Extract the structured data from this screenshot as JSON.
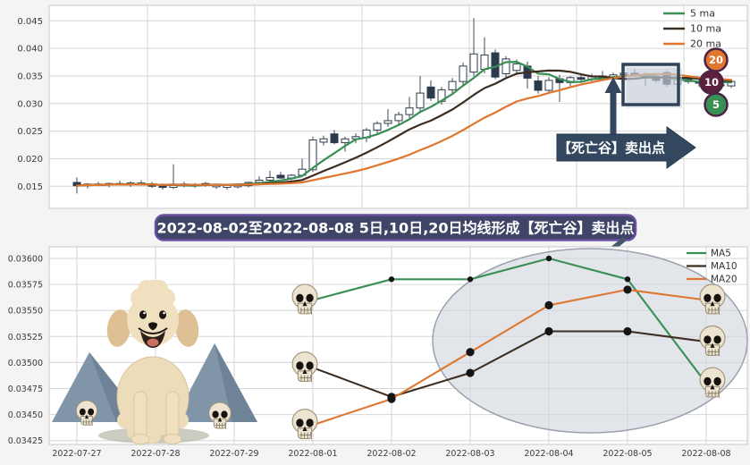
{
  "banner": {
    "text": "2022-08-02至2022-08-08 5日,10日,20日均线形成【死亡谷】卖出点"
  },
  "colors": {
    "ma5": "#3a8f55",
    "ma10": "#3c2d21",
    "ma20": "#e0762f",
    "candle_up_fill": "#ffffff",
    "candle_down_fill": "#2b3a4d",
    "candle_stroke": "#2e3b4e",
    "annotation_navy": "#33475f",
    "banner_fill": "#3f4566",
    "banner_border": "#6b4fa2",
    "badge_border": "#4b2344",
    "badge_10_fill": "#5d2139",
    "ellipse_fill": "#cfd4dc",
    "ellipse_stroke": "#9ba1ad",
    "grid": "#d6d6d6",
    "spine": "#c9c9c9",
    "marker_dot": "#141414"
  },
  "chart_data": [
    {
      "id": "candlestick-overview",
      "type": "candlestick",
      "grid": true,
      "legend_position": "upper right",
      "legend": [
        {
          "name": "5 ma",
          "color": "#3a8f55"
        },
        {
          "name": "10 ma",
          "color": "#3c2d21"
        },
        {
          "name": "20 ma",
          "color": "#e0762f"
        }
      ],
      "ma_windows": [
        5,
        10,
        20
      ],
      "y_ticks": [
        0.015,
        0.02,
        0.025,
        0.03,
        0.035,
        0.04,
        0.045
      ],
      "y_tick_labels": [
        "0.015",
        "0.020",
        "0.025",
        "0.030",
        "0.035",
        "0.040",
        "0.045"
      ],
      "ylim": [
        0.011,
        0.0475
      ],
      "annotation": {
        "text": "【死亡谷】卖出点"
      },
      "badges": [
        {
          "text": "20",
          "fill": "#e0762f"
        },
        {
          "text": "10",
          "fill": "#5d2139"
        },
        {
          "text": "5",
          "fill": "#3a8f55"
        }
      ],
      "ohlc": [
        [
          0.0157,
          0.0166,
          0.0137,
          0.0151
        ],
        [
          0.0151,
          0.0156,
          0.0146,
          0.0154
        ],
        [
          0.0154,
          0.0158,
          0.015,
          0.0152
        ],
        [
          0.0152,
          0.0157,
          0.0148,
          0.0155
        ],
        [
          0.0155,
          0.016,
          0.0151,
          0.0153
        ],
        [
          0.0153,
          0.0159,
          0.0149,
          0.0156
        ],
        [
          0.0156,
          0.0161,
          0.0152,
          0.0154
        ],
        [
          0.0154,
          0.0158,
          0.0147,
          0.015
        ],
        [
          0.015,
          0.0155,
          0.0144,
          0.0148
        ],
        [
          0.0148,
          0.019,
          0.0145,
          0.0154
        ],
        [
          0.0154,
          0.0158,
          0.0148,
          0.0151
        ],
        [
          0.0151,
          0.0156,
          0.0147,
          0.0153
        ],
        [
          0.0153,
          0.0158,
          0.0149,
          0.0155
        ],
        [
          0.0149,
          0.0154,
          0.0145,
          0.0153
        ],
        [
          0.0148,
          0.0153,
          0.0144,
          0.0152
        ],
        [
          0.0149,
          0.0155,
          0.0146,
          0.0154
        ],
        [
          0.0151,
          0.0158,
          0.0148,
          0.0157
        ],
        [
          0.0157,
          0.0168,
          0.0153,
          0.0161
        ],
        [
          0.0161,
          0.0178,
          0.0158,
          0.0166
        ],
        [
          0.017,
          0.0176,
          0.0163,
          0.0165
        ],
        [
          0.0165,
          0.0172,
          0.0161,
          0.017
        ],
        [
          0.017,
          0.02,
          0.0166,
          0.0181
        ],
        [
          0.018,
          0.024,
          0.0176,
          0.0234
        ],
        [
          0.023,
          0.0242,
          0.0224,
          0.0236
        ],
        [
          0.0245,
          0.0252,
          0.0226,
          0.0229
        ],
        [
          0.0229,
          0.024,
          0.0213,
          0.0236
        ],
        [
          0.0236,
          0.0246,
          0.0228,
          0.024
        ],
        [
          0.0238,
          0.0256,
          0.023,
          0.0252
        ],
        [
          0.0252,
          0.0268,
          0.0246,
          0.0264
        ],
        [
          0.0264,
          0.029,
          0.0258,
          0.0269
        ],
        [
          0.0269,
          0.0285,
          0.0262,
          0.028
        ],
        [
          0.028,
          0.0312,
          0.0274,
          0.0292
        ],
        [
          0.0292,
          0.035,
          0.0286,
          0.0319
        ],
        [
          0.033,
          0.0342,
          0.0305,
          0.031
        ],
        [
          0.0304,
          0.033,
          0.0298,
          0.0325
        ],
        [
          0.0325,
          0.0346,
          0.0318,
          0.034
        ],
        [
          0.034,
          0.0374,
          0.0334,
          0.0368
        ],
        [
          0.0357,
          0.0455,
          0.035,
          0.039
        ],
        [
          0.0362,
          0.042,
          0.0355,
          0.0388
        ],
        [
          0.0392,
          0.0398,
          0.0344,
          0.0348
        ],
        [
          0.0354,
          0.0386,
          0.0348,
          0.0381
        ],
        [
          0.036,
          0.038,
          0.0352,
          0.0372
        ],
        [
          0.0368,
          0.0376,
          0.0327,
          0.0346
        ],
        [
          0.0341,
          0.035,
          0.0318,
          0.0324
        ],
        [
          0.0324,
          0.0348,
          0.032,
          0.0342
        ],
        [
          0.0345,
          0.0352,
          0.0303,
          0.0338
        ],
        [
          0.0338,
          0.035,
          0.0332,
          0.0347
        ],
        [
          0.0347,
          0.0353,
          0.034,
          0.0344
        ],
        [
          0.0344,
          0.0354,
          0.0338,
          0.035
        ],
        [
          0.035,
          0.0359,
          0.0344,
          0.0347
        ],
        [
          0.0347,
          0.0356,
          0.0342,
          0.0352
        ],
        [
          0.0352,
          0.036,
          0.0346,
          0.0355
        ],
        [
          0.0355,
          0.0362,
          0.0348,
          0.0351
        ],
        [
          0.0351,
          0.0356,
          0.0332,
          0.0348
        ],
        [
          0.0348,
          0.0355,
          0.0338,
          0.0342
        ],
        [
          0.0356,
          0.036,
          0.033,
          0.0335
        ],
        [
          0.0335,
          0.0348,
          0.033,
          0.0344
        ],
        [
          0.0344,
          0.035,
          0.0336,
          0.034
        ],
        [
          0.034,
          0.0347,
          0.033,
          0.0337
        ],
        [
          0.0337,
          0.0345,
          0.0332,
          0.0342
        ],
        [
          0.0334,
          0.034,
          0.0328,
          0.0332
        ],
        [
          0.0332,
          0.0342,
          0.0328,
          0.034
        ]
      ]
    },
    {
      "id": "ma-lines-detail",
      "type": "line",
      "grid": true,
      "legend_position": "upper right",
      "categories": [
        "2022-07-27",
        "2022-07-28",
        "2022-07-29",
        "2022-08-01",
        "2022-08-02",
        "2022-08-03",
        "2022-08-04",
        "2022-08-05",
        "2022-08-08"
      ],
      "y_ticks": [
        0.03425,
        0.0345,
        0.03475,
        0.035,
        0.03525,
        0.0355,
        0.03575,
        0.036
      ],
      "y_tick_labels": [
        "0.03425",
        "0.03450",
        "0.03475",
        "0.03500",
        "0.03525",
        "0.03550",
        "0.03575",
        "0.03600"
      ],
      "ylim": [
        0.0341,
        0.0362
      ],
      "series": [
        {
          "name": "MA5",
          "color": "#3a8f55",
          "start_index": 3,
          "values": [
            0.0356,
            0.0358,
            0.0358,
            0.036,
            0.0358,
            0.0348
          ]
        },
        {
          "name": "MA10",
          "color": "#3c2d21",
          "start_index": 3,
          "values": [
            0.03495,
            0.03467,
            0.0349,
            0.0353,
            0.0353,
            0.0352
          ]
        },
        {
          "name": "MA20",
          "color": "#e0762f",
          "start_index": 3,
          "values": [
            0.0344,
            0.03465,
            0.0351,
            0.03555,
            0.0357,
            0.0356
          ]
        }
      ],
      "endpoint_marker": "skull-icon",
      "highlight_ellipse": true
    }
  ]
}
